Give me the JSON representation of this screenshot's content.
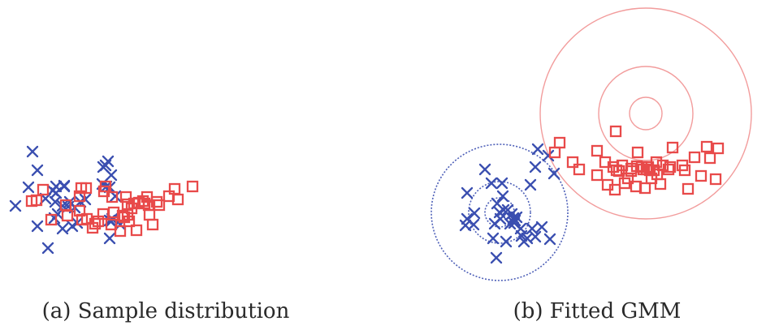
{
  "chart_data": [
    {
      "type": "scatter",
      "caption": "(a) Sample distribution",
      "series": [
        {
          "marker": "x",
          "color": "#3b4fb0",
          "points": [
            [
              -126,
              -6
            ],
            [
              -110,
              17
            ],
            [
              -105,
              61
            ],
            [
              -99,
              38
            ],
            [
              -99,
              -31
            ],
            [
              -89,
              3
            ],
            [
              -86,
              -58
            ],
            [
              -80,
              13
            ],
            [
              -78,
              -21
            ],
            [
              -77,
              -1
            ],
            [
              -76,
              10
            ],
            [
              -76,
              18
            ],
            [
              -74,
              -16
            ],
            [
              -68,
              -6
            ],
            [
              -68,
              -34
            ],
            [
              -66,
              19
            ],
            [
              -66,
              18
            ],
            [
              -61,
              -7
            ],
            [
              -59,
              -1
            ],
            [
              -56,
              -31
            ],
            [
              -53,
              -8
            ],
            [
              -50,
              -27
            ],
            [
              -46,
              -1
            ],
            [
              -40,
              2
            ],
            [
              -19,
              21
            ],
            [
              -14,
              18
            ],
            [
              -10,
              -46
            ],
            [
              -10,
              -24
            ],
            [
              -10,
              17
            ],
            [
              -8,
              32
            ],
            [
              -8,
              -25
            ],
            [
              -7,
              -22
            ],
            [
              3,
              -29
            ],
            [
              -3,
              6
            ],
            [
              -18,
              42
            ],
            [
              -12,
              49
            ],
            [
              -15,
              44
            ]
          ]
        },
        {
          "marker": "square",
          "color": "#e84a4a",
          "points": [
            [
              -106,
              0
            ],
            [
              -100,
              1
            ],
            [
              -92,
              14
            ],
            [
              -82,
              -23
            ],
            [
              -64,
              -5
            ],
            [
              -62,
              -18
            ],
            [
              -47,
              6
            ],
            [
              -44,
              -23
            ],
            [
              -47,
              -12
            ],
            [
              -38,
              -22
            ],
            [
              -39,
              16
            ],
            [
              -45,
              16
            ],
            [
              -31,
              -33
            ],
            [
              -28,
              -28
            ],
            [
              -24,
              -25
            ],
            [
              -18,
              -16
            ],
            [
              -17,
              12
            ],
            [
              -15,
              18
            ],
            [
              -8,
              -29
            ],
            [
              -7,
              5
            ],
            [
              3,
              -37
            ],
            [
              6,
              -18
            ],
            [
              8,
              -20
            ],
            [
              14,
              -25
            ],
            [
              10,
              5
            ],
            [
              12,
              -17
            ],
            [
              12,
              -4
            ],
            [
              17,
              -9
            ],
            [
              20,
              -3
            ],
            [
              23,
              -36
            ],
            [
              26,
              -2
            ],
            [
              31,
              0
            ],
            [
              33,
              -3
            ],
            [
              36,
              5
            ],
            [
              38,
              -5
            ],
            [
              39,
              -17
            ],
            [
              43,
              -29
            ],
            [
              48,
              -1
            ],
            [
              51,
              -5
            ],
            [
              63,
              6
            ],
            [
              70,
              15
            ],
            [
              74,
              2
            ],
            [
              92,
              18
            ],
            [
              -5,
              -14
            ]
          ]
        }
      ]
    },
    {
      "type": "scatter",
      "caption": "(b) Fitted GMM",
      "series": [
        {
          "marker": "x",
          "color": "#3b4fb0",
          "contour_center": [
            0,
            0
          ],
          "contour_radii": [
            18,
            38,
            84
          ],
          "points": [
            [
              -40,
              24
            ],
            [
              -32,
              -15
            ],
            [
              -18,
              53
            ],
            [
              -10,
              36
            ],
            [
              -8,
              -32
            ],
            [
              -6,
              -14
            ],
            [
              -4,
              -56
            ],
            [
              0,
              0
            ],
            [
              1,
              -8
            ],
            [
              4,
              20
            ],
            [
              5,
              3
            ],
            [
              8,
              -36
            ],
            [
              10,
              3
            ],
            [
              13,
              -14
            ],
            [
              15,
              -2
            ],
            [
              17,
              -7
            ],
            [
              18,
              -13
            ],
            [
              19,
              -10
            ],
            [
              21,
              -6
            ],
            [
              26,
              -20
            ],
            [
              27,
              -29
            ],
            [
              30,
              -36
            ],
            [
              34,
              -32
            ],
            [
              38,
              34
            ],
            [
              40,
              -20
            ],
            [
              44,
              56
            ],
            [
              47,
              78
            ],
            [
              60,
              70
            ],
            [
              67,
              48
            ],
            [
              -42,
              -16
            ],
            [
              -40,
              -8
            ],
            [
              52,
              -18
            ],
            [
              62,
              -33
            ],
            [
              -3,
              11
            ],
            [
              44,
              -30
            ],
            [
              3,
              36
            ],
            [
              -31,
              -1
            ]
          ]
        },
        {
          "marker": "square",
          "color": "#e84a4a",
          "contour_center": [
            0,
            0
          ],
          "contour_radii": [
            20,
            58,
            130
          ],
          "points": [
            [
              -112,
              -48
            ],
            [
              -106,
              -36
            ],
            [
              -90,
              -60
            ],
            [
              -82,
              -69
            ],
            [
              -60,
              -76
            ],
            [
              -60,
              -46
            ],
            [
              -50,
              -60
            ],
            [
              -40,
              -66
            ],
            [
              -38,
              -94
            ],
            [
              -36,
              -70
            ],
            [
              -33,
              -71
            ],
            [
              -29,
              -64
            ],
            [
              -26,
              -86
            ],
            [
              -22,
              -80
            ],
            [
              -18,
              -71
            ],
            [
              -18,
              -68
            ],
            [
              -12,
              -90
            ],
            [
              -11,
              -65
            ],
            [
              -5,
              -66
            ],
            [
              -3,
              -69
            ],
            [
              -1,
              -92
            ],
            [
              1,
              -69
            ],
            [
              3,
              -66
            ],
            [
              5,
              -70
            ],
            [
              7,
              -80
            ],
            [
              10,
              -70
            ],
            [
              13,
              -60
            ],
            [
              14,
              -75
            ],
            [
              18,
              -87
            ],
            [
              21,
              -64
            ],
            [
              28,
              -69
            ],
            [
              30,
              -66
            ],
            [
              33,
              -42
            ],
            [
              45,
              -64
            ],
            [
              48,
              -70
            ],
            [
              52,
              -93
            ],
            [
              60,
              -54
            ],
            [
              68,
              -77
            ],
            [
              75,
              -41
            ],
            [
              79,
              -55
            ],
            [
              86,
              -81
            ],
            [
              89,
              -43
            ],
            [
              -47,
              -88
            ],
            [
              -37,
              -22
            ],
            [
              -10,
              -48
            ]
          ]
        }
      ]
    }
  ]
}
